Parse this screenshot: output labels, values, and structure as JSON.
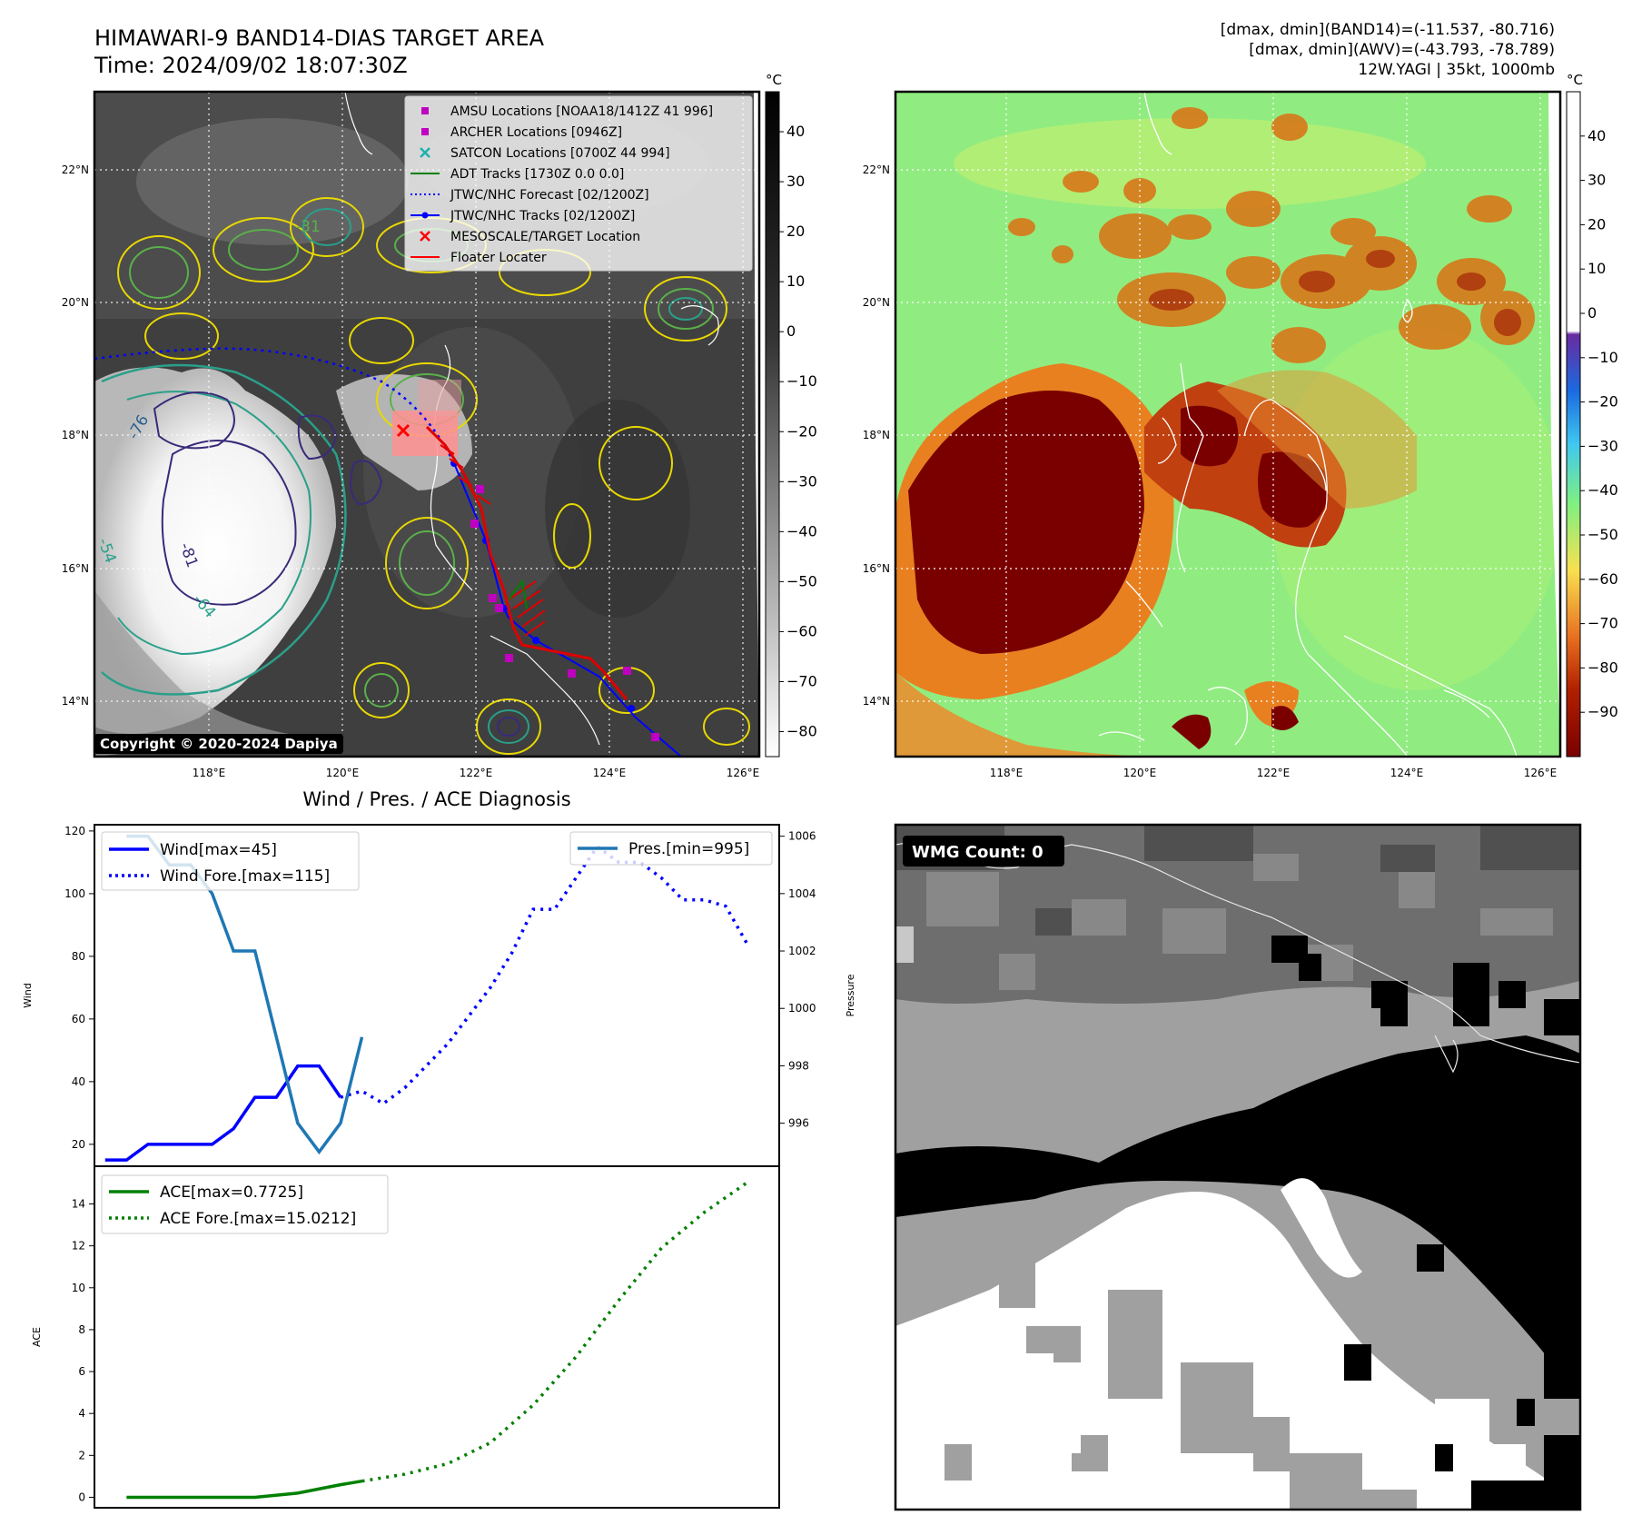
{
  "header": {
    "title": "HIMAWARI-9 BAND14-DIAS TARGET AREA",
    "time": "Time: 2024/09/02 18:07:30Z",
    "dmax_band14": "[dmax, dmin](BAND14)=(-11.537, -80.716)",
    "dmax_awv": "[dmax, dmin](AWV)=(-43.793, -78.789)",
    "storm": "12W.YAGI | 35kt, 1000mb"
  },
  "copyright": "Copyright © 2020-2024 Dapiya",
  "wmg_label": "WMG Count: 0",
  "map": {
    "lon_ticks": [
      "118°E",
      "120°E",
      "122°E",
      "124°E",
      "126°E"
    ],
    "lat_ticks": [
      "22°N",
      "20°N",
      "18°N",
      "16°N",
      "14°N"
    ],
    "unit": "°C",
    "contour_labels": [
      "-31",
      "-54",
      "-64",
      "-76",
      "-81",
      "-64",
      "-31"
    ],
    "legend": [
      {
        "label": "AMSU Locations [NOAA18/1412Z 41 996]",
        "marker": "square",
        "color": "#c000c0"
      },
      {
        "label": "ARCHER Locations [0946Z]",
        "marker": "square",
        "color": "#c000c0"
      },
      {
        "label": "SATCON Locations [0700Z 44 994]",
        "marker": "x",
        "color": "#20b0b0"
      },
      {
        "label": "ADT Tracks [1730Z 0.0 0.0]",
        "marker": "line",
        "color": "#008000"
      },
      {
        "label": "JTWC/NHC Forecast [02/1200Z]",
        "marker": "dotted",
        "color": "#0000ff"
      },
      {
        "label": "JTWC/NHC Tracks [02/1200Z]",
        "marker": "line-dot",
        "color": "#0000ff"
      },
      {
        "label": "MESOSCALE/TARGET Location",
        "marker": "x",
        "color": "#ff0000"
      },
      {
        "label": "Floater Locater",
        "marker": "line",
        "color": "#ff0000"
      }
    ],
    "cbar_gray_ticks": [
      "40",
      "30",
      "20",
      "10",
      "0",
      "−10",
      "−20",
      "−30",
      "−40",
      "−50",
      "−60",
      "−70",
      "−80"
    ],
    "cbar_color_ticks": [
      "40",
      "30",
      "20",
      "10",
      "0",
      "−10",
      "−20",
      "−30",
      "−40",
      "−50",
      "−60",
      "−70",
      "−80",
      "−90"
    ]
  },
  "diag": {
    "title": "Wind / Pres. / ACE Diagnosis",
    "wind_ylabel": "Wind",
    "pres_ylabel": "Pressure",
    "ace_ylabel": "ACE",
    "wind_legend": [
      "Wind[max=45]",
      "Wind Fore.[max=115]"
    ],
    "pres_legend": "Pres.[min=995]",
    "ace_legend": [
      "ACE[max=0.7725]",
      "ACE Fore.[max=15.0212]"
    ]
  },
  "chart_data": [
    {
      "type": "line",
      "panel": "wind-pressure",
      "ylim": [
        13,
        122
      ],
      "y2lim": [
        994.5,
        1006.4
      ],
      "yticks": [
        20,
        40,
        60,
        80,
        100,
        120
      ],
      "y2ticks": [
        996,
        998,
        1000,
        1002,
        1004,
        1006
      ],
      "series": [
        {
          "name": "Wind[max=45]",
          "axis": "wind",
          "style": "solid",
          "color": "#0000ff",
          "x": [
            0,
            1,
            2,
            3,
            4,
            5,
            6,
            7,
            8,
            9,
            10,
            11
          ],
          "values": [
            15,
            15,
            20,
            20,
            20,
            20,
            25,
            35,
            35,
            45,
            45,
            35
          ]
        },
        {
          "name": "Wind Fore.[max=115]",
          "axis": "wind",
          "style": "dotted",
          "color": "#0000ff",
          "x": [
            11,
            12,
            13,
            14,
            15,
            16,
            17,
            18,
            19,
            20,
            21,
            22,
            23,
            24,
            25,
            26,
            27,
            28,
            29,
            30
          ],
          "values": [
            35,
            37,
            33,
            38,
            45,
            52,
            61,
            70,
            81,
            95,
            95,
            105,
            115,
            110,
            110,
            105,
            98,
            98,
            96,
            84
          ]
        },
        {
          "name": "Pres.[min=995]",
          "axis": "pressure",
          "style": "solid",
          "color": "#1f77b4",
          "x": [
            1,
            2,
            3,
            4,
            5,
            6,
            7,
            8,
            9,
            10,
            11,
            12
          ],
          "values": [
            1006,
            1006,
            1005,
            1005,
            1004,
            1002,
            1002,
            999,
            996,
            995,
            996,
            999
          ]
        }
      ]
    },
    {
      "type": "line",
      "panel": "ace",
      "ylim": [
        -0.5,
        15.8
      ],
      "yticks": [
        0,
        2,
        4,
        6,
        8,
        10,
        12,
        14
      ],
      "series": [
        {
          "name": "ACE[max=0.7725]",
          "style": "solid",
          "color": "#008000",
          "x": [
            1,
            3,
            5,
            7,
            9,
            11,
            12
          ],
          "values": [
            0,
            0,
            0,
            0,
            0.2,
            0.6,
            0.77
          ]
        },
        {
          "name": "ACE Fore.[max=15.0212]",
          "style": "dotted",
          "color": "#008000",
          "x": [
            12,
            14,
            16,
            18,
            20,
            22,
            24,
            26,
            28,
            30
          ],
          "values": [
            0.77,
            1.1,
            1.6,
            2.6,
            4.4,
            6.7,
            9.4,
            11.9,
            13.6,
            15.02
          ]
        }
      ]
    }
  ]
}
